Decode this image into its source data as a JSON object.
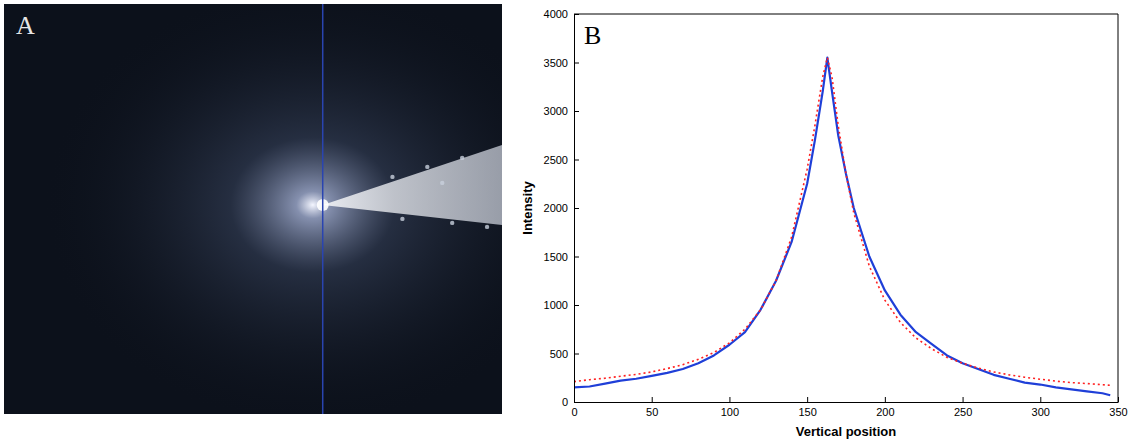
{
  "image_panel": {
    "label": "A"
  },
  "chart_data": {
    "type": "line",
    "panel_label": "B",
    "x_label": "Vertical position",
    "y_label": "Intensity",
    "xlim": [
      0,
      350
    ],
    "xticks": [
      0,
      50,
      100,
      150,
      200,
      250,
      300,
      350
    ],
    "ylim": [
      0,
      4000
    ],
    "yticks": [
      0,
      500,
      1000,
      1500,
      2000,
      2500,
      3000,
      3500,
      4000
    ],
    "x": [
      0,
      10,
      20,
      30,
      40,
      50,
      60,
      70,
      80,
      90,
      100,
      110,
      120,
      130,
      140,
      150,
      155,
      160,
      163,
      166,
      170,
      175,
      180,
      190,
      200,
      210,
      220,
      230,
      240,
      250,
      260,
      270,
      280,
      290,
      300,
      310,
      320,
      330,
      340,
      345
    ],
    "series": [
      {
        "color": "#1f3fd8",
        "line_style": "solid",
        "values": [
          150,
          160,
          190,
          220,
          240,
          270,
          300,
          340,
          400,
          480,
          590,
          720,
          950,
          1250,
          1650,
          2250,
          2700,
          3200,
          3550,
          3200,
          2750,
          2350,
          2000,
          1500,
          1150,
          900,
          720,
          600,
          480,
          400,
          340,
          280,
          240,
          200,
          180,
          150,
          130,
          110,
          90,
          70
        ]
      },
      {
        "color": "#ff2020",
        "line_style": "dotted",
        "values": [
          210,
          230,
          245,
          265,
          285,
          310,
          345,
          385,
          440,
          510,
          610,
          750,
          950,
          1250,
          1700,
          2400,
          2850,
          3350,
          3550,
          3350,
          2850,
          2350,
          1950,
          1400,
          1050,
          820,
          660,
          550,
          460,
          400,
          350,
          310,
          280,
          255,
          235,
          215,
          200,
          190,
          178,
          172
        ]
      }
    ]
  }
}
